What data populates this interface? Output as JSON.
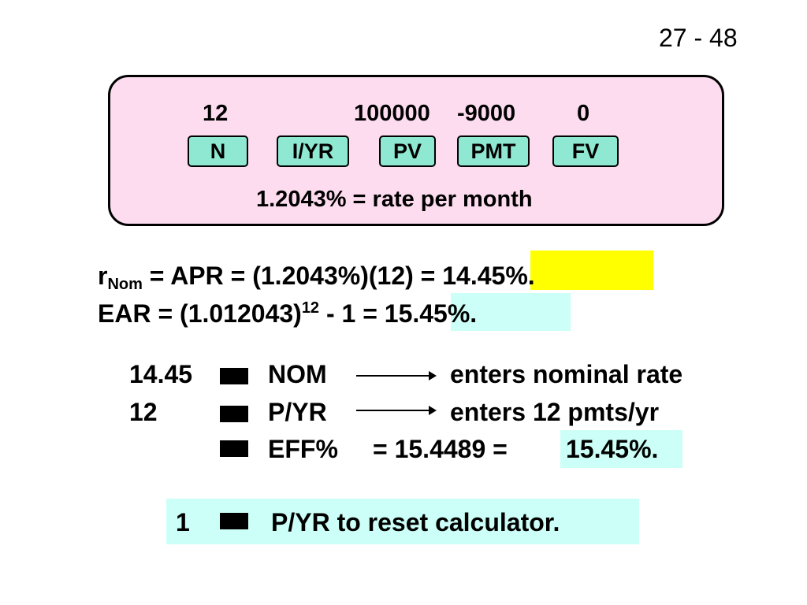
{
  "page_number": "27 - 48",
  "calculator": {
    "inputs": [
      {
        "key": "N",
        "value": "12"
      },
      {
        "key": "I/YR",
        "value": ""
      },
      {
        "key": "PV",
        "value": "100000"
      },
      {
        "key": "PMT",
        "value": "-9000"
      },
      {
        "key": "FV",
        "value": "0"
      }
    ],
    "result": "1.2043% = rate per month"
  },
  "formulas": {
    "nominal": {
      "lead": "r",
      "subscript": "Nom",
      "expression": " = APR = (1.2043%)(12) = ",
      "answer": "14.45%."
    },
    "ear": {
      "expression": "EAR = (1.012043)",
      "exponent": "12",
      "tail": " - 1 = ",
      "answer": "15.45%."
    }
  },
  "steps": [
    {
      "input": "14.45",
      "key": "NOM",
      "description": "enters nominal rate"
    },
    {
      "input": "12",
      "key": "P/YR",
      "description": "enters 12 pmts/yr"
    },
    {
      "input": "",
      "key": "EFF%",
      "equals": "=  15.4489 =",
      "answer": "15.45%."
    }
  ],
  "reset": {
    "input": "1",
    "text": "P/YR to reset calculator."
  },
  "colors": {
    "calc_background": "#fcdcee",
    "key_fill": "#8fe8d2",
    "highlight_yellow": "#ffff00",
    "highlight_cyan": "#ccfff7"
  }
}
